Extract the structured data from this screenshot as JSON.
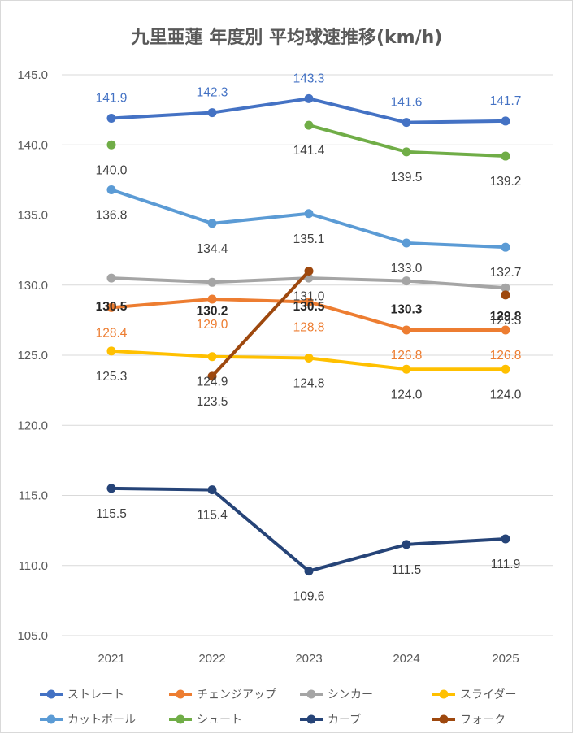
{
  "chart_data": {
    "type": "line",
    "title": "九里亜蓮 年度別 平均球速推移(km/h)",
    "categories": [
      "2021",
      "2022",
      "2023",
      "2024",
      "2025"
    ],
    "ylim": [
      105,
      145
    ],
    "y_ticks": [
      "105.0",
      "110.0",
      "115.0",
      "120.0",
      "125.0",
      "130.0",
      "135.0",
      "140.0",
      "145.0"
    ],
    "grid": true,
    "legend_position": "bottom",
    "series": [
      {
        "name": "ストレート",
        "color": "#4472c4",
        "values": [
          141.9,
          142.3,
          143.3,
          141.6,
          141.7
        ],
        "labels": [
          "141.9",
          "142.3",
          "143.3",
          "141.6",
          "141.7"
        ]
      },
      {
        "name": "チェンジアップ",
        "color": "#ed7d31",
        "values": [
          128.4,
          129.0,
          128.8,
          126.8,
          126.8
        ],
        "labels": [
          "128.4",
          "129.0",
          "128.8",
          "126.8",
          "126.8"
        ]
      },
      {
        "name": "シンカー",
        "color": "#a5a5a5",
        "values": [
          130.5,
          130.2,
          130.5,
          130.3,
          129.8
        ],
        "labels": [
          "130.5",
          "130.2",
          "130.5",
          "130.3",
          "129.8"
        ]
      },
      {
        "name": "スライダー",
        "color": "#ffc000",
        "values": [
          125.3,
          124.9,
          124.8,
          124.0,
          124.0
        ],
        "labels": [
          "125.3",
          "124.9",
          "124.8",
          "124.0",
          "124.0"
        ]
      },
      {
        "name": "カットボール",
        "color": "#5b9bd5",
        "values": [
          136.8,
          134.4,
          135.1,
          133.0,
          132.7
        ],
        "labels": [
          "136.8",
          "134.4",
          "135.1",
          "133.0",
          "132.7"
        ]
      },
      {
        "name": "シュート",
        "color": "#70ad47",
        "values": [
          140.0,
          null,
          141.4,
          139.5,
          139.2
        ],
        "labels": [
          "140.0",
          null,
          "141.4",
          "139.5",
          "139.2"
        ]
      },
      {
        "name": "カーブ",
        "color": "#264478",
        "values": [
          115.5,
          115.4,
          109.6,
          111.5,
          111.9
        ],
        "labels": [
          "115.5",
          "115.4",
          "109.6",
          "111.5",
          "111.9"
        ]
      },
      {
        "name": "フォーク",
        "color": "#9e480e",
        "values": [
          null,
          123.5,
          131.0,
          null,
          129.3
        ],
        "labels": [
          null,
          "123.5",
          "131.0",
          null,
          "129.3"
        ]
      }
    ]
  }
}
